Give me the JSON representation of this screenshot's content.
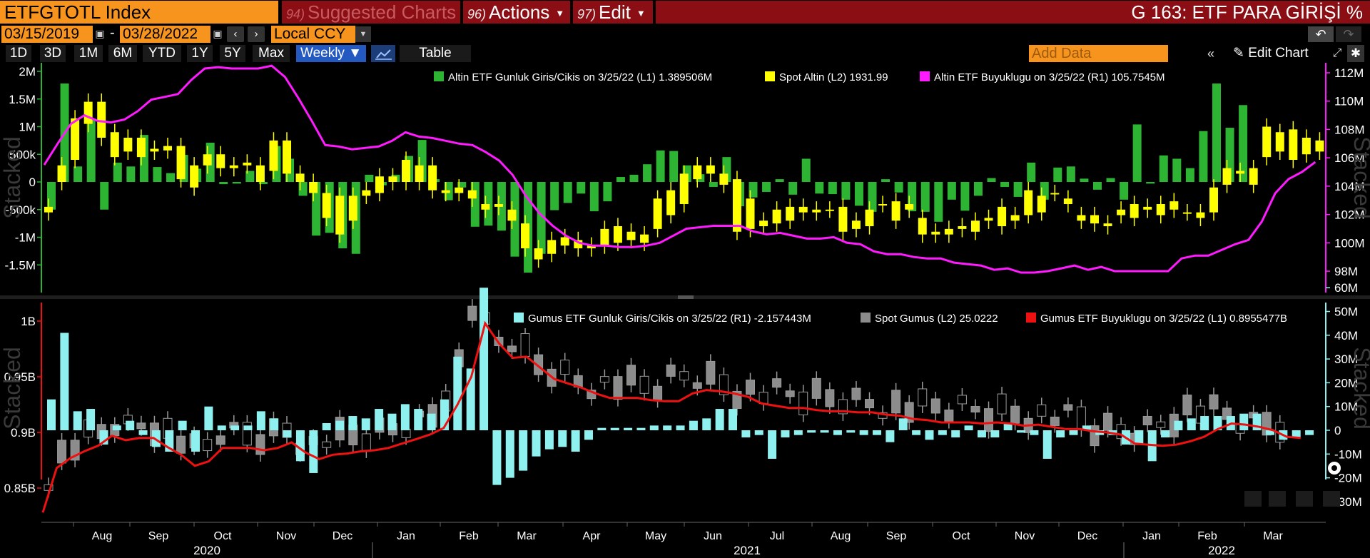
{
  "toolbar": {
    "ticker": "ETFGTOTL Index",
    "suggested_num": "94)",
    "suggested_label": "Suggested Charts",
    "actions_num": "96)",
    "actions_label": "Actions",
    "edit_num": "97)",
    "edit_label": "Edit",
    "function_title": "G 163: ETF PARA GİRİŞİ %",
    "start_date": "03/15/2019",
    "date_separator": "-",
    "end_date": "03/28/2022",
    "currency": "Local CCY",
    "ranges": [
      "1D",
      "3D",
      "1M",
      "6M",
      "YTD",
      "1Y",
      "5Y",
      "Max"
    ],
    "frequency": "Weekly ▼",
    "table_label": "Table",
    "add_data_placeholder": "Add Data",
    "edit_chart_label": "Edit Chart"
  },
  "colors": {
    "orange": "#f7941d",
    "green": "#2cb432",
    "yellow": "#ffff00",
    "magenta": "#ff1aff",
    "cyan": "#8ff0f0",
    "gray": "#8c8c8c",
    "red": "#ee1111"
  },
  "time_axis": {
    "months": [
      "Aug",
      "Sep",
      "Oct",
      "Nov",
      "Dec",
      "Jan",
      "Feb",
      "Mar",
      "Apr",
      "May",
      "Jun",
      "Jul",
      "Aug",
      "Sep",
      "Oct",
      "Nov",
      "Dec",
      "Jan",
      "Feb",
      "Mar"
    ],
    "years": [
      "2020",
      "2021",
      "2022"
    ]
  },
  "chart_data": [
    {
      "type": "bar",
      "title": "",
      "x_range": [
        "2020-07-10",
        "2022-03-25"
      ],
      "axis_left": {
        "ticks": [
          "2M",
          "1.5M",
          "1M",
          "500k",
          "0",
          "-500k",
          "-1M",
          "-1.5M"
        ],
        "label": "Stacked"
      },
      "axis_right": {
        "ticks": [
          "112M",
          "110M",
          "108M",
          "106M",
          "104M",
          "102M",
          "100M",
          "98M"
        ],
        "label": "Stacked"
      },
      "legend": [
        {
          "name": "Altin ETF Gunluk Giris/Cikis on 3/25/22 (L1) 1.389506M",
          "icon": "green"
        },
        {
          "name": "Spot Altin (L2) 1931.99",
          "icon": "yellow"
        },
        {
          "name": "Altin ETF Buyuklugu on 3/25/22 (R1) 105.7545M",
          "icon": "magenta"
        }
      ],
      "series": [
        {
          "name": "Altin ETF Gunluk Giris/Cikis",
          "kind": "bar",
          "axis": "L1",
          "values": [
            -0.5,
            1.78,
            0.28,
            1.13,
            -0.5,
            0.35,
            0.28,
            0.85,
            0.27,
            0.16,
            0.49,
            0.24,
            0.71,
            -0.04,
            -0.03,
            0.2,
            -0.04,
            0.65,
            0.42,
            -0.25,
            -0.97,
            -0.92,
            -1.2,
            -1.3,
            0.13,
            -0.06,
            0.13,
            0.47,
            0.76,
            0.05,
            -0.33,
            -0.1,
            -0.81,
            -0.79,
            -0.88,
            -1.35,
            -1.64,
            -1.3,
            -0.51,
            -0.38,
            -0.21,
            -0.53,
            -0.35,
            0.09,
            0.13,
            0.32,
            0.57,
            0.56,
            0.3,
            0.14,
            -0.09,
            0.45,
            -0.44,
            -0.28,
            -0.18,
            0.05,
            -0.23,
            0.42,
            -0.21,
            -0.22,
            -0.32,
            -0.43,
            -0.54,
            0.05,
            -0.19,
            -0.53,
            -0.54,
            -0.72,
            -0.32,
            -0.52,
            -0.25,
            0.07,
            -0.09,
            -0.27,
            0.35,
            -0.32,
            0.26,
            0.28,
            0.06,
            -0.14,
            0.07,
            -0.32,
            1.04,
            -0.03,
            0.48,
            0.42,
            0.25,
            0.92,
            1.78,
            0.98,
            1.39
          ]
        },
        {
          "name": "Spot Altin",
          "kind": "candlestick",
          "axis": "L2",
          "ohlc_scale": "left-axis units (M)",
          "bodies": [
            [
              -0.45,
              -0.55
            ],
            [
              0.0,
              0.3
            ],
            [
              0.4,
              1.15
            ],
            [
              1.45,
              1.05
            ],
            [
              1.45,
              0.8
            ],
            [
              0.9,
              0.45
            ],
            [
              0.8,
              0.55
            ],
            [
              0.8,
              0.45
            ],
            [
              0.6,
              0.55
            ],
            [
              0.65,
              0.57
            ],
            [
              0.65,
              0.05
            ],
            [
              0.3,
              -0.1
            ],
            [
              0.5,
              0.3
            ],
            [
              0.5,
              0.25
            ],
            [
              0.3,
              0.25
            ],
            [
              0.35,
              0.3
            ],
            [
              0.3,
              0.0
            ],
            [
              0.75,
              0.2
            ],
            [
              0.75,
              0.15
            ],
            [
              0.15,
              0.0
            ],
            [
              0.0,
              -0.2
            ],
            [
              -0.2,
              -0.65
            ],
            [
              -0.25,
              -0.95
            ],
            [
              -0.25,
              -0.7
            ],
            [
              -0.15,
              -0.25
            ],
            [
              0.1,
              -0.2
            ],
            [
              0.1,
              0.0
            ],
            [
              0.4,
              0.0
            ],
            [
              0.3,
              0.0
            ],
            [
              0.3,
              -0.15
            ],
            [
              -0.15,
              -0.2
            ],
            [
              -0.2,
              -0.1
            ],
            [
              -0.3,
              -0.15
            ],
            [
              -0.4,
              -0.5
            ],
            [
              -0.4,
              -0.45
            ],
            [
              -0.5,
              -0.7
            ],
            [
              -0.75,
              -1.2
            ],
            [
              -1.2,
              -1.4
            ],
            [
              -1.05,
              -1.3
            ],
            [
              -1.0,
              -1.15
            ],
            [
              -1.05,
              -1.2
            ],
            [
              -1.15,
              -1.2
            ],
            [
              -0.85,
              -1.15
            ],
            [
              -0.8,
              -1.1
            ],
            [
              -0.9,
              -1.05
            ],
            [
              -0.95,
              -1.1
            ],
            [
              -0.3,
              -0.85
            ],
            [
              -0.15,
              -0.6
            ],
            [
              0.15,
              -0.4
            ],
            [
              0.3,
              0.05
            ],
            [
              0.3,
              0.15
            ],
            [
              0.15,
              -0.05
            ],
            [
              0.05,
              -0.9
            ],
            [
              -0.3,
              -0.85
            ],
            [
              -0.7,
              -0.8
            ],
            [
              -0.5,
              -0.75
            ],
            [
              -0.45,
              -0.7
            ],
            [
              -0.45,
              -0.55
            ],
            [
              -0.5,
              -0.55
            ],
            [
              -0.5,
              -0.5
            ],
            [
              -0.45,
              -0.9
            ],
            [
              -0.7,
              -0.85
            ],
            [
              -0.5,
              -0.8
            ],
            [
              -0.4,
              -0.4
            ],
            [
              -0.35,
              -0.7
            ],
            [
              -0.4,
              -0.5
            ],
            [
              -0.65,
              -0.95
            ],
            [
              -0.9,
              -0.95
            ],
            [
              -0.85,
              -0.95
            ],
            [
              -0.8,
              -0.85
            ],
            [
              -0.7,
              -0.9
            ],
            [
              -0.65,
              -0.7
            ],
            [
              -0.45,
              -0.8
            ],
            [
              -0.6,
              -0.7
            ],
            [
              -0.15,
              -0.6
            ],
            [
              -0.25,
              -0.55
            ],
            [
              -0.2,
              -0.2
            ],
            [
              -0.3,
              -0.4
            ],
            [
              -0.6,
              -0.7
            ],
            [
              -0.6,
              -0.75
            ],
            [
              -0.75,
              -0.8
            ],
            [
              -0.5,
              -0.6
            ],
            [
              -0.4,
              -0.65
            ],
            [
              -0.45,
              -0.5
            ],
            [
              -0.4,
              -0.6
            ],
            [
              -0.35,
              -0.5
            ],
            [
              -0.55,
              -0.55
            ],
            [
              -0.55,
              -0.65
            ],
            [
              -0.1,
              -0.55
            ],
            [
              0.25,
              -0.05
            ],
            [
              0.2,
              0.15
            ],
            [
              0.25,
              -0.05
            ],
            [
              1.0,
              0.45
            ],
            [
              0.9,
              0.55
            ],
            [
              0.95,
              0.4
            ],
            [
              0.8,
              0.5
            ],
            [
              0.75,
              0.55
            ]
          ]
        },
        {
          "name": "Altin ETF Buyuklugu",
          "kind": "line",
          "axis": "R1",
          "unit": "M",
          "values": [
            105.5,
            107.0,
            108.4,
            109.0,
            108.6,
            108.5,
            108.7,
            109.3,
            110.1,
            110.3,
            110.5,
            111.5,
            112.3,
            112.4,
            112.3,
            112.3,
            112.3,
            112.5,
            111.7,
            110.2,
            108.6,
            106.9,
            106.8,
            106.6,
            106.7,
            106.8,
            107.2,
            107.8,
            107.5,
            107.4,
            107.2,
            107.0,
            106.9,
            106.4,
            105.8,
            104.8,
            103.3,
            102.1,
            101.2,
            100.5,
            100.0,
            99.8,
            99.8,
            99.7,
            99.7,
            99.8,
            100.0,
            100.5,
            101.0,
            101.1,
            101.2,
            101.2,
            101.2,
            100.8,
            100.6,
            100.7,
            100.5,
            100.3,
            100.3,
            100.4,
            100.0,
            99.9,
            99.4,
            99.2,
            99.2,
            99.0,
            98.9,
            98.9,
            98.6,
            98.5,
            98.4,
            98.1,
            98.2,
            97.9,
            97.9,
            98.0,
            98.2,
            98.4,
            98.1,
            98.3,
            98.0,
            98.0,
            98.0,
            98.0,
            98.0,
            98.9,
            99.1,
            99.1,
            99.5,
            99.9,
            100.2,
            101.5,
            103.5,
            104.5,
            105.0,
            105.7
          ]
        }
      ]
    },
    {
      "type": "bar",
      "title": "",
      "axis_left": {
        "ticks": [
          "1B",
          "0.95B",
          "0.9B",
          "0.85B"
        ],
        "label": "Stacked"
      },
      "axis_right": {
        "ticks": [
          "60M",
          "50M",
          "40M",
          "30M",
          "20M",
          "10M",
          "0",
          "-10M",
          "-20M",
          "-30M"
        ],
        "label": "Stacked"
      },
      "legend": [
        {
          "name": "Gumus ETF Gunluk Giris/Cikis on 3/25/22 (R1) -2.157443M",
          "icon": "cyan"
        },
        {
          "name": "Spot Gumus (L2) 25.0222",
          "icon": "gray"
        },
        {
          "name": "Gumus ETF Buyuklugu on 3/25/22 (L1) 0.8955477B",
          "icon": "red"
        }
      ],
      "series": [
        {
          "name": "Gumus ETF Gunluk Giris/Cikis",
          "kind": "bar",
          "axis": "R1",
          "unit": "M",
          "values": [
            13,
            41,
            8,
            9,
            -6,
            2,
            4,
            -2,
            -7,
            -9,
            4,
            -9,
            10,
            2,
            2,
            2,
            8,
            5,
            -3,
            -13,
            -18,
            3,
            4,
            6,
            5,
            9,
            7,
            11,
            9,
            7,
            13,
            31,
            26,
            60,
            -23,
            -20,
            -17,
            -11,
            -8,
            -7,
            -9,
            -4,
            1,
            1,
            1,
            1,
            2,
            2,
            2,
            4,
            5,
            9,
            9,
            -3,
            -2,
            -12,
            -3,
            -2,
            -1,
            -1,
            -2,
            -1,
            -2,
            -2,
            -5,
            5,
            -2,
            -4,
            -2,
            -3,
            2,
            -3,
            -3,
            3,
            -1,
            -2,
            -12,
            -3,
            -2,
            2,
            -2,
            -2,
            -6,
            -6,
            -13,
            -3,
            4,
            5,
            6,
            6,
            6,
            7,
            7,
            -2,
            -4,
            -3,
            -2
          ]
        },
        {
          "name": "Spot Gumus",
          "kind": "candlestick",
          "axis": "L2"
        },
        {
          "name": "Gumus ETF Buyuklugu",
          "kind": "line",
          "axis": "L1",
          "unit": "B",
          "values": [
            0.828,
            0.868,
            0.877,
            0.883,
            0.888,
            0.897,
            0.893,
            0.895,
            0.895,
            0.887,
            0.88,
            0.87,
            0.874,
            0.886,
            0.886,
            0.886,
            0.884,
            0.886,
            0.891,
            0.882,
            0.876,
            0.88,
            0.881,
            0.883,
            0.884,
            0.886,
            0.89,
            0.894,
            0.898,
            0.904,
            0.925,
            0.95,
            0.998,
            0.98,
            0.967,
            0.968,
            0.958,
            0.948,
            0.944,
            0.94,
            0.935,
            0.931,
            0.931,
            0.931,
            0.929,
            0.928,
            0.928,
            0.935,
            0.938,
            0.937,
            0.935,
            0.932,
            0.926,
            0.924,
            0.922,
            0.922,
            0.92,
            0.919,
            0.919,
            0.918,
            0.918,
            0.916,
            0.915,
            0.912,
            0.911,
            0.909,
            0.909,
            0.909,
            0.908,
            0.909,
            0.908,
            0.906,
            0.907,
            0.905,
            0.903,
            0.903,
            0.901,
            0.9,
            0.898,
            0.89,
            0.889,
            0.888,
            0.889,
            0.892,
            0.896,
            0.903,
            0.908,
            0.907,
            0.905,
            0.902,
            0.896,
            0.895
          ]
        }
      ]
    }
  ]
}
